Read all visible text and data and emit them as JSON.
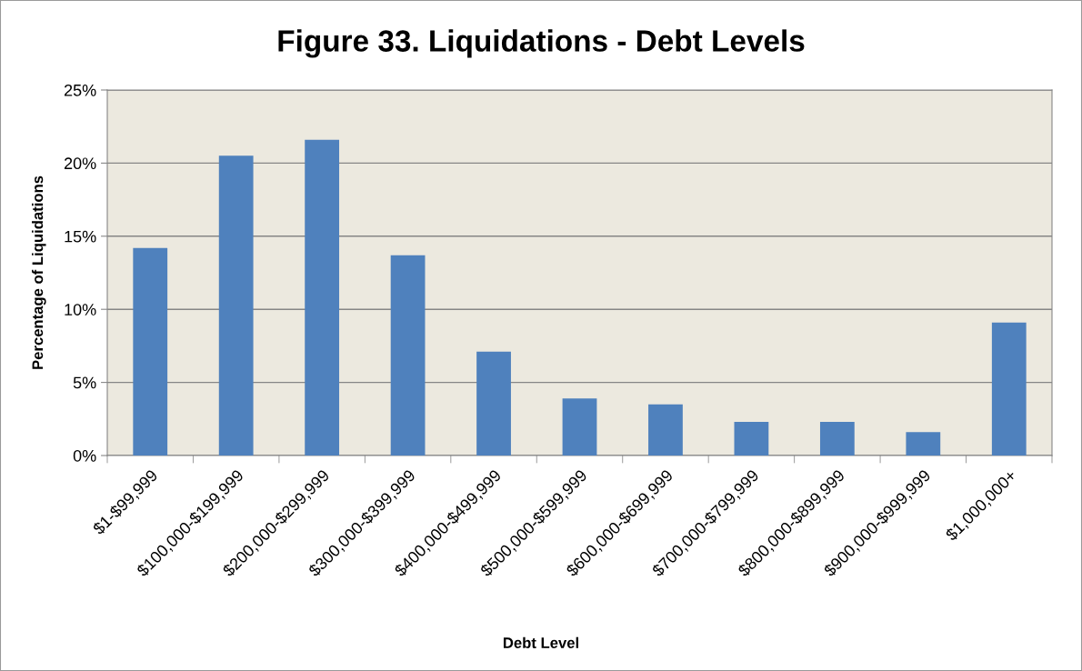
{
  "chart_data": {
    "type": "bar",
    "title": "Figure 33. Liquidations - Debt Levels",
    "xlabel": "Debt Level",
    "ylabel": "Percentage of Liquidations",
    "categories": [
      "$1-$99,999",
      "$100,000-$199,999",
      "$200,000-$299,999",
      "$300,000-$399,999",
      "$400,000-$499,999",
      "$500,000-$599,999",
      "$600,000-$699,999",
      "$700,000-$799,999",
      "$800,000-$899,999",
      "$900,000-$999,999",
      "$1,000,000+"
    ],
    "values": [
      14.2,
      20.5,
      21.6,
      13.7,
      7.1,
      3.9,
      3.5,
      2.3,
      2.3,
      1.6,
      9.1
    ],
    "color": "#4f81bd",
    "ylim": [
      0,
      25
    ],
    "yticks": [
      {
        "value": 0,
        "label": "0%"
      },
      {
        "value": 5,
        "label": "5%"
      },
      {
        "value": 10,
        "label": "10%"
      },
      {
        "value": 15,
        "label": "15%"
      },
      {
        "value": 20,
        "label": "20%"
      },
      {
        "value": 25,
        "label": "25%"
      }
    ],
    "grid": "y",
    "legend": false
  }
}
